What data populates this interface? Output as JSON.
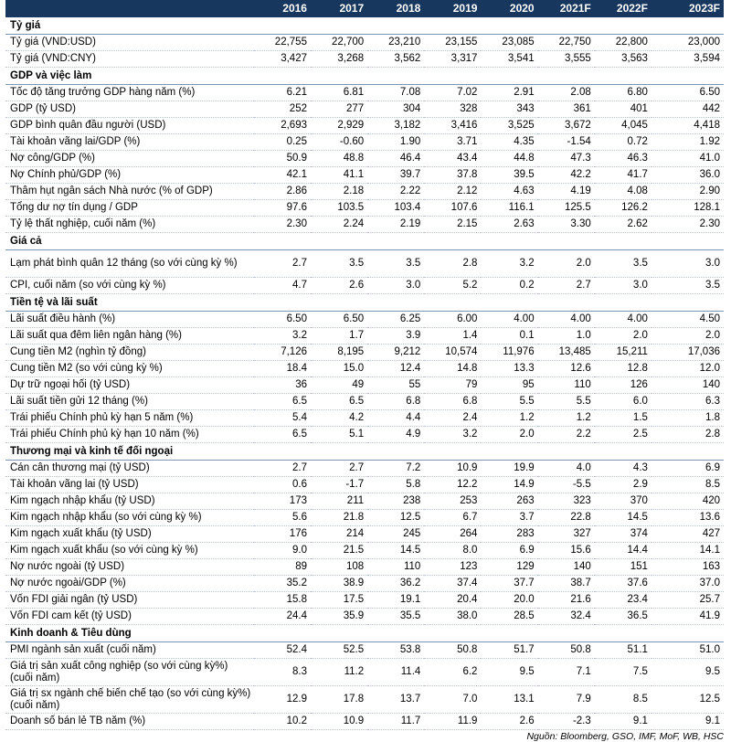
{
  "header": {
    "years": [
      "2016",
      "2017",
      "2018",
      "2019",
      "2020",
      "2021F",
      "2022F",
      "2023F"
    ]
  },
  "sections": [
    {
      "title": "Tỷ giá",
      "rows": [
        {
          "label": "Tỷ giá (VND:USD)",
          "values": [
            "22,755",
            "22,700",
            "23,210",
            "23,155",
            "23,085",
            "22,750",
            "22,800",
            "23,000"
          ]
        },
        {
          "label": "Tỷ giá (VND:CNY)",
          "values": [
            "3,427",
            "3,268",
            "3,562",
            "3,317",
            "3,541",
            "3,555",
            "3,563",
            "3,594"
          ]
        }
      ]
    },
    {
      "title": "GDP và việc làm",
      "rows": [
        {
          "label": "Tốc độ tăng trưởng GDP hàng năm (%)",
          "values": [
            "6.21",
            "6.81",
            "7.08",
            "7.02",
            "2.91",
            "2.08",
            "6.80",
            "6.50"
          ]
        },
        {
          "label": "GDP (tỷ USD)",
          "values": [
            "252",
            "277",
            "304",
            "328",
            "343",
            "361",
            "401",
            "442"
          ]
        },
        {
          "label": "GDP bình quân đầu người (USD)",
          "values": [
            "2,693",
            "2,929",
            "3,182",
            "3,416",
            "3,525",
            "3,672",
            "4,045",
            "4,418"
          ]
        },
        {
          "label": "Tài khoản vãng lai/GDP (%)",
          "values": [
            "0.25",
            "-0.60",
            "1.90",
            "3.71",
            "4.35",
            "-1.54",
            "0.72",
            "1.92"
          ]
        },
        {
          "label": "Nợ công/GDP (%)",
          "values": [
            "50.9",
            "48.8",
            "46.4",
            "43.4",
            "44.8",
            "47.3",
            "46.3",
            "41.0"
          ]
        },
        {
          "label": "Nợ Chính phủ/GDP (%)",
          "values": [
            "42.1",
            "41.1",
            "39.7",
            "37.8",
            "39.5",
            "42.2",
            "41.7",
            "36.0"
          ]
        },
        {
          "label": "Thâm hụt ngân sách Nhà nước (% of GDP)",
          "values": [
            "2.86",
            "2.18",
            "2.22",
            "2.12",
            "4.63",
            "4.19",
            "4.08",
            "2.90"
          ]
        },
        {
          "label": "Tổng dư nợ tín dụng / GDP",
          "values": [
            "97.6",
            "103.5",
            "103.4",
            "107.6",
            "116.1",
            "125.5",
            "126.2",
            "128.1"
          ]
        },
        {
          "label": "Tỷ lệ thất nghiệp, cuối năm (%)",
          "values": [
            "2.30",
            "2.24",
            "2.19",
            "2.15",
            "2.63",
            "3.30",
            "2.62",
            "2.30"
          ]
        }
      ]
    },
    {
      "title": "Giá cả",
      "rows": [
        {
          "label": "Lạm phát bình quân 12 tháng (so với cùng kỳ %)",
          "values": [
            "2.7",
            "3.5",
            "3.5",
            "2.8",
            "3.2",
            "2.0",
            "3.5",
            "3.0"
          ],
          "tall": true
        },
        {
          "label": "CPI, cuối năm (so với cùng kỳ %)",
          "values": [
            "4.7",
            "2.6",
            "3.0",
            "5.2",
            "0.2",
            "2.7",
            "3.0",
            "3.5"
          ]
        }
      ]
    },
    {
      "title": "Tiền tệ và lãi suất",
      "rows": [
        {
          "label": "Lãi suất điều hành (%)",
          "values": [
            "6.50",
            "6.50",
            "6.25",
            "6.00",
            "4.00",
            "4.00",
            "4.00",
            "4.50"
          ]
        },
        {
          "label": "Lãi suất qua đêm liên ngân hàng (%)",
          "values": [
            "3.2",
            "1.7",
            "3.9",
            "1.4",
            "0.1",
            "1.0",
            "2.0",
            "2.0"
          ]
        },
        {
          "label": "Cung tiền M2 (nghìn tỷ đồng)",
          "values": [
            "7,126",
            "8,195",
            "9,212",
            "10,574",
            "11,976",
            "13,485",
            "15,211",
            "17,036"
          ]
        },
        {
          "label": "Cung tiền M2 (so với cùng kỳ %)",
          "values": [
            "18.4",
            "15.0",
            "12.4",
            "14.8",
            "13.3",
            "12.6",
            "12.8",
            "12.0"
          ]
        },
        {
          "label": "Dự trữ ngoại hối (tỷ USD)",
          "values": [
            "36",
            "49",
            "55",
            "79",
            "95",
            "110",
            "126",
            "140"
          ]
        },
        {
          "label": "Lãi suất tiền gửi 12 tháng (%)",
          "values": [
            "6.5",
            "6.5",
            "6.8",
            "6.8",
            "5.5",
            "5.5",
            "6.0",
            "6.3"
          ]
        },
        {
          "label": "Trái phiếu Chính phủ kỳ hạn 5 năm (%)",
          "values": [
            "5.4",
            "4.2",
            "4.4",
            "2.4",
            "1.2",
            "1.2",
            "1.5",
            "1.8"
          ]
        },
        {
          "label": "Trái phiếu Chính phủ kỳ hạn 10 năm (%)",
          "values": [
            "6.5",
            "5.1",
            "4.9",
            "3.2",
            "2.0",
            "2.2",
            "2.5",
            "2.8"
          ]
        }
      ]
    },
    {
      "title": "Thương mại và kinh tế đối ngoại",
      "rows": [
        {
          "label": "Cán cân thương mại (tỷ USD)",
          "values": [
            "2.7",
            "2.7",
            "7.2",
            "10.9",
            "19.9",
            "4.0",
            "4.3",
            "6.9"
          ]
        },
        {
          "label": "Tài khoản vãng lai (tỷ USD)",
          "values": [
            "0.6",
            "-1.7",
            "5.8",
            "12.2",
            "14.9",
            "-5.5",
            "2.9",
            "8.5"
          ]
        },
        {
          "label": "Kim ngạch nhập khẩu (tỷ USD)",
          "values": [
            "173",
            "211",
            "238",
            "253",
            "263",
            "323",
            "370",
            "420"
          ]
        },
        {
          "label": "Kim ngạch nhập khẩu (so với cùng kỳ %)",
          "values": [
            "5.6",
            "21.8",
            "12.5",
            "6.7",
            "3.7",
            "22.8",
            "14.5",
            "13.6"
          ]
        },
        {
          "label": "Kim ngạch xuất khẩu (tỷ USD)",
          "values": [
            "176",
            "214",
            "245",
            "264",
            "283",
            "327",
            "374",
            "427"
          ]
        },
        {
          "label": "Kim ngạch xuất khẩu (so với cùng kỳ %)",
          "values": [
            "9.0",
            "21.5",
            "14.5",
            "8.0",
            "6.9",
            "15.6",
            "14.4",
            "14.1"
          ]
        },
        {
          "label": "Nợ nước ngoài (tỷ USD)",
          "values": [
            "89",
            "108",
            "110",
            "123",
            "129",
            "140",
            "151",
            "163"
          ]
        },
        {
          "label": "Nợ nước ngoài/GDP (%)",
          "values": [
            "35.2",
            "38.9",
            "36.2",
            "37.4",
            "37.7",
            "38.7",
            "37.6",
            "37.0"
          ]
        },
        {
          "label": "Vốn FDI giải ngân (tỷ USD)",
          "values": [
            "15.8",
            "17.5",
            "19.1",
            "20.4",
            "20.0",
            "21.6",
            "23.4",
            "25.7"
          ]
        },
        {
          "label": "Vốn FDI cam kết (tỷ USD)",
          "values": [
            "24.4",
            "35.9",
            "35.5",
            "38.0",
            "28.5",
            "32.4",
            "36.5",
            "41.9"
          ]
        }
      ]
    },
    {
      "title": "Kinh doanh & Tiêu dùng",
      "rows": [
        {
          "label": "PMI ngành sản xuất (cuối năm)",
          "values": [
            "52.4",
            "52.5",
            "53.8",
            "50.8",
            "51.7",
            "50.8",
            "51.1",
            "51.0"
          ]
        },
        {
          "label": "Giá trị sản xuất công nghiệp (so với cùng kỳ%) (cuối năm)",
          "values": [
            "8.3",
            "11.2",
            "11.4",
            "6.2",
            "9.5",
            "7.1",
            "7.5",
            "9.5"
          ],
          "tall": true
        },
        {
          "label": "Giá trị sx ngành chế biến chế tạo (so với cùng kỳ%) (cuối năm)",
          "values": [
            "12.9",
            "17.8",
            "13.7",
            "7.0",
            "13.1",
            "7.9",
            "8.5",
            "12.5"
          ],
          "tall": true
        },
        {
          "label": "Doanh số bán lẻ TB năm (%)",
          "values": [
            "10.2",
            "10.9",
            "11.7",
            "11.9",
            "2.6",
            "-2.3",
            "9.1",
            "9.1"
          ]
        }
      ]
    }
  ],
  "source": "Nguồn: Bloomberg, GSO, IMF, MoF, WB, HSC",
  "colors": {
    "header_bg": "#17375e",
    "header_text": "#ffffff",
    "row_rule": "#b7c3d4"
  }
}
